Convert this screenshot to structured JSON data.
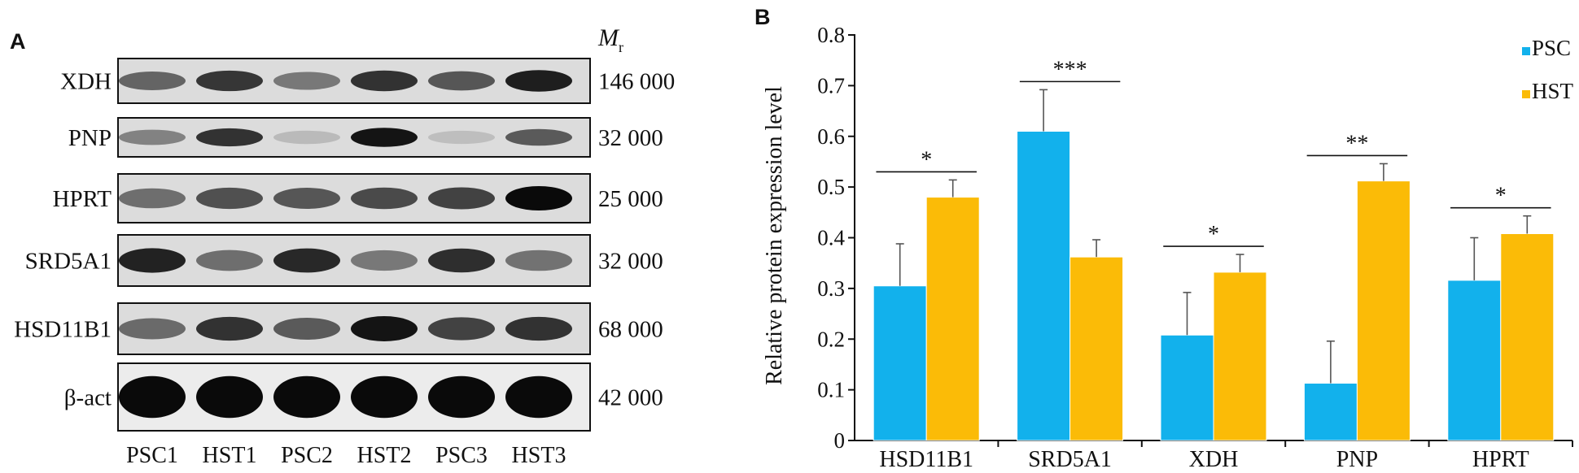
{
  "panel_a": {
    "label": "A",
    "mr_label": "M",
    "mr_sub": "r",
    "rows": [
      {
        "protein": "XDH",
        "mr": "146 000",
        "bands": [
          0.55,
          0.78,
          0.45,
          0.8,
          0.62,
          0.9
        ]
      },
      {
        "protein": "PNP",
        "mr": "32 000",
        "bands": [
          0.4,
          0.8,
          0.12,
          0.95,
          0.1,
          0.6
        ]
      },
      {
        "protein": "HPRT",
        "mr": "25 000",
        "bands": [
          0.5,
          0.65,
          0.62,
          0.68,
          0.72,
          1.0
        ]
      },
      {
        "protein": "SRD5A1",
        "mr": "32 000",
        "bands": [
          0.88,
          0.5,
          0.85,
          0.45,
          0.82,
          0.48
        ]
      },
      {
        "protein": "HSD11B1",
        "mr": "68 000",
        "bands": [
          0.52,
          0.8,
          0.6,
          0.95,
          0.72,
          0.8
        ]
      },
      {
        "protein": "β-act",
        "mr": "42 000",
        "bands": [
          1.0,
          1.0,
          1.0,
          1.0,
          1.0,
          1.0
        ]
      }
    ],
    "lanes": [
      "PSC1",
      "HST1",
      "PSC2",
      "HST2",
      "PSC3",
      "HST3"
    ]
  },
  "panel_b_label": "B",
  "chart_data": {
    "type": "bar",
    "ylabel": "Relative protein expression level",
    "xlabel": "",
    "ylim": [
      0,
      0.8
    ],
    "yticks": [
      "0",
      "0.1",
      "0.2",
      "0.3",
      "0.4",
      "0.5",
      "0.6",
      "0.7",
      "0.8"
    ],
    "categories": [
      "HSD11B1",
      "SRD5A1",
      "XDH",
      "PNP",
      "HPRT"
    ],
    "legend_position": "top-right",
    "series": [
      {
        "name": "PSC",
        "color": "#12b1ec",
        "values": [
          0.305,
          0.61,
          0.208,
          0.113,
          0.316
        ],
        "errors": [
          0.083,
          0.082,
          0.084,
          0.083,
          0.084
        ]
      },
      {
        "name": "HST",
        "color": "#fbbb07",
        "values": [
          0.48,
          0.362,
          0.332,
          0.512,
          0.408
        ],
        "errors": [
          0.034,
          0.034,
          0.035,
          0.034,
          0.035
        ]
      }
    ],
    "significance": [
      "*",
      "***",
      "*",
      "**",
      "*"
    ]
  }
}
